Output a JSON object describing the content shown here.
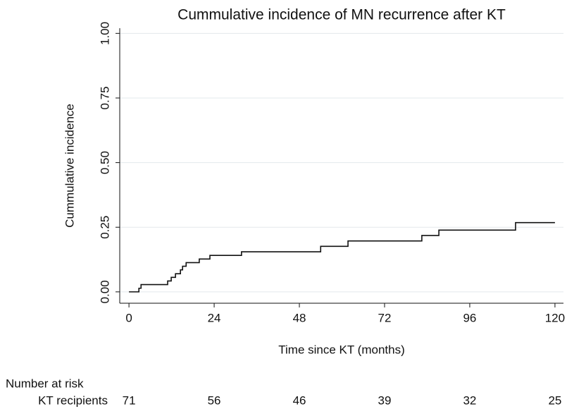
{
  "chart_data": {
    "type": "step",
    "title": "Cummulative incidence of MN recurrence after KT",
    "x_label": "Time since KT (months)",
    "y_label": "Cummulative incidence",
    "x": [
      0,
      2.8,
      3.4,
      10.9,
      11.9,
      13.1,
      14.5,
      15.1,
      16.1,
      19.8,
      22.8,
      31.7,
      54,
      61.7,
      82.5,
      87.3,
      108.9,
      120
    ],
    "values": [
      0,
      0.014,
      0.028,
      0.042,
      0.056,
      0.07,
      0.085,
      0.099,
      0.113,
      0.127,
      0.141,
      0.155,
      0.176,
      0.197,
      0.218,
      0.239,
      0.268,
      0.268
    ],
    "color": "#111111",
    "grid": true,
    "grid_color": "#e3e8ec",
    "xlim": [
      -2.6,
      122.4
    ],
    "ylim": [
      -0.044,
      1.02
    ],
    "xticks": [
      0,
      24,
      48,
      72,
      96,
      120
    ],
    "yticks": [
      {
        "value": 0,
        "label": "0.00"
      },
      {
        "value": 0.25,
        "label": "0.25"
      },
      {
        "value": 0.5,
        "label": "0.50"
      },
      {
        "value": 0.75,
        "label": "0.75"
      },
      {
        "value": 1,
        "label": "1.00"
      }
    ],
    "risk_table": {
      "title": "Number at risk",
      "row_label": "KT recipients",
      "values": [
        71,
        56,
        46,
        39,
        32,
        25
      ]
    }
  }
}
